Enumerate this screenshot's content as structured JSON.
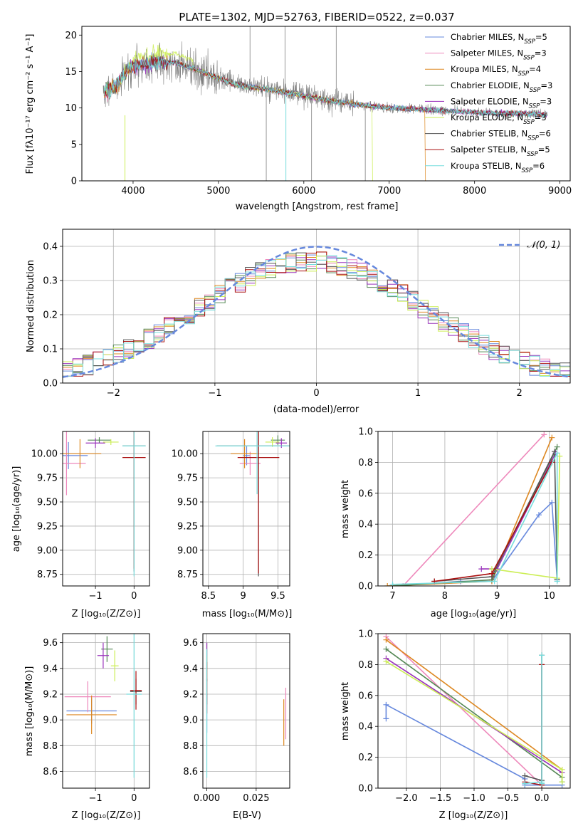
{
  "chart_data": [
    {
      "id": "spectrum",
      "type": "line",
      "title": "PLATE=1302, MJD=52763, FIBERID=0522, z=0.037",
      "xlabel": "wavelength [Angstrom, rest frame]",
      "ylabel": "Flux [fλ10⁻¹⁷ erg cm⁻² s⁻¹ A⁻¹]",
      "xlim": [
        3400,
        9120
      ],
      "ylim": [
        0,
        21.2
      ],
      "xticks": [
        4000,
        5000,
        6000,
        7000,
        8000,
        9000
      ],
      "yticks": [
        0,
        5,
        10,
        15,
        20
      ],
      "grid": false,
      "legend_position": "top-right",
      "legend": [
        {
          "text": "Chabrier MILES, N",
          "sub": "SSP",
          "suffix": "=5",
          "color": "#6688dd"
        },
        {
          "text": "Salpeter MILES, N",
          "sub": "SSP",
          "suffix": "=3",
          "color": "#ee88bb"
        },
        {
          "text": "Kroupa MILES, N",
          "sub": "SSP",
          "suffix": "=4",
          "color": "#dd8822"
        },
        {
          "text": "Chabrier ELODIE, N",
          "sub": "SSP",
          "suffix": "=3",
          "color": "#558855"
        },
        {
          "text": "Salpeter ELODIE, N",
          "sub": "SSP",
          "suffix": "=3",
          "color": "#9933bb"
        },
        {
          "text": "Kroupa ELODIE, N",
          "sub": "SSP",
          "suffix": "=3",
          "color": "#ccee55"
        },
        {
          "text": "Chabrier STELIB, N",
          "sub": "SSP",
          "suffix": "=6",
          "color": "#555555"
        },
        {
          "text": "Salpeter STELIB, N",
          "sub": "SSP",
          "suffix": "=5",
          "color": "#aa1111"
        },
        {
          "text": "Kroupa STELIB, N",
          "sub": "SSP",
          "suffix": "=6",
          "color": "#77dddd"
        }
      ],
      "continuum": [
        [
          3650,
          12.0
        ],
        [
          3800,
          13.0
        ],
        [
          3950,
          15.5
        ],
        [
          4100,
          16.0
        ],
        [
          4300,
          16.3
        ],
        [
          4500,
          16.2
        ],
        [
          4800,
          15.0
        ],
        [
          5200,
          13.2
        ],
        [
          5600,
          12.5
        ],
        [
          6000,
          11.7
        ],
        [
          6300,
          11.0
        ],
        [
          6600,
          10.5
        ],
        [
          7000,
          10.0
        ],
        [
          7400,
          9.8
        ],
        [
          7800,
          9.5
        ],
        [
          8200,
          9.3
        ],
        [
          8600,
          9.2
        ],
        [
          8850,
          9.1
        ]
      ]
    },
    {
      "id": "residuals",
      "type": "area",
      "xlabel": "(data-model)/error",
      "ylabel": "Normed distribution",
      "xlim": [
        -2.5,
        2.5
      ],
      "ylim": [
        0,
        0.45
      ],
      "xticks": [
        -2,
        -1,
        0,
        1,
        2
      ],
      "yticks": [
        0.0,
        0.1,
        0.2,
        0.3,
        0.4
      ],
      "grid": true,
      "legend_position": "top-right",
      "legend": [
        {
          "text": "𝒩(0, 1)",
          "color": "#6688dd"
        }
      ],
      "gaussian": {
        "mu": 0,
        "sigma": 1
      }
    },
    {
      "id": "age-vs-Z",
      "type": "scatter",
      "xlabel": "Z [log₁₀(Z/Z⊙)]",
      "ylabel": "age  [log₁₀(age/yr)]",
      "xlim": [
        -1.85,
        0.4
      ],
      "ylim": [
        8.63,
        10.23
      ],
      "xticks": [
        -1,
        0
      ],
      "yticks": [
        8.75,
        9.0,
        9.25,
        9.5,
        9.75,
        10.0
      ],
      "grid": true,
      "points": [
        {
          "x": -1.7,
          "y": 9.98,
          "xerr": 0.5,
          "yerr": 0.14,
          "color": "#6688dd"
        },
        {
          "x": -1.75,
          "y": 9.9,
          "xerr": 0.5,
          "yerr": 0.33,
          "color": "#ee88bb"
        },
        {
          "x": -1.4,
          "y": 10.0,
          "xerr": 0.55,
          "yerr": 0.15,
          "color": "#dd8822"
        },
        {
          "x": -0.9,
          "y": 10.14,
          "xerr": 0.3,
          "yerr": 0.03,
          "color": "#558855"
        },
        {
          "x": -1.0,
          "y": 10.11,
          "xerr": 0.25,
          "yerr": 0.05,
          "color": "#9933bb"
        },
        {
          "x": -0.6,
          "y": 10.12,
          "xerr": 0.2,
          "yerr": 0.03,
          "color": "#ccee55"
        },
        {
          "x": 0.0,
          "y": 10.08,
          "xerr": 0.3,
          "yerr": 1.3,
          "color": "#555555"
        },
        {
          "x": 0.0,
          "y": 9.96,
          "xerr": 0.3,
          "yerr": 1.15,
          "color": "#aa1111"
        },
        {
          "x": 0.0,
          "y": 10.08,
          "xerr": 0.3,
          "yerr": 1.35,
          "color": "#77dddd"
        }
      ]
    },
    {
      "id": "age-vs-mass",
      "type": "scatter",
      "xlabel": "mass [log₁₀(M/M⊙)]",
      "ylabel": "",
      "xlim": [
        8.42,
        9.67
      ],
      "ylim": [
        8.63,
        10.23
      ],
      "xticks": [
        8.5,
        9.0,
        9.5
      ],
      "yticks": [
        8.75,
        9.0,
        9.25,
        9.5,
        9.75,
        10.0
      ],
      "grid": true,
      "points": [
        {
          "x": 9.05,
          "y": 9.98,
          "xerr": 0.05,
          "yerr": 0.1,
          "color": "#6688dd"
        },
        {
          "x": 9.1,
          "y": 9.9,
          "xerr": 0.15,
          "yerr": 0.12,
          "color": "#ee88bb"
        },
        {
          "x": 9.02,
          "y": 10.0,
          "xerr": 0.2,
          "yerr": 0.15,
          "color": "#dd8822"
        },
        {
          "x": 9.5,
          "y": 10.14,
          "xerr": 0.1,
          "yerr": 0.05,
          "color": "#558855"
        },
        {
          "x": 9.55,
          "y": 10.11,
          "xerr": 0.08,
          "yerr": 0.05,
          "color": "#9933bb"
        },
        {
          "x": 9.42,
          "y": 10.12,
          "xerr": 0.1,
          "yerr": 0.05,
          "color": "#ccee55"
        },
        {
          "x": 9.22,
          "y": 10.08,
          "xerr": 0.6,
          "yerr": 1.35,
          "color": "#555555"
        },
        {
          "x": 9.22,
          "y": 9.96,
          "xerr": 0.3,
          "yerr": 1.2,
          "color": "#aa1111"
        },
        {
          "x": 9.2,
          "y": 10.08,
          "xerr": 0.6,
          "yerr": 0.5,
          "color": "#77dddd"
        }
      ]
    },
    {
      "id": "massweight-vs-age",
      "type": "line",
      "xlabel": "age  [log₁₀(age/yr)]",
      "ylabel": "mass weight",
      "xlim": [
        6.72,
        10.4
      ],
      "ylim": [
        0,
        1
      ],
      "xticks": [
        7,
        8,
        9,
        10
      ],
      "yticks": [
        0.0,
        0.2,
        0.4,
        0.6,
        0.8,
        1.0
      ],
      "grid": true,
      "series": [
        {
          "color": "#6688dd",
          "x": [
            7.0,
            8.3,
            8.9,
            9.8,
            10.05,
            10.15,
            10.15
          ],
          "y": [
            0.0,
            0.03,
            0.03,
            0.46,
            0.54,
            0.04,
            0.04
          ]
        },
        {
          "color": "#ee88bb",
          "x": [
            7.2,
            9.9
          ],
          "y": [
            0.0,
            0.98
          ]
        },
        {
          "color": "#dd8822",
          "x": [
            6.9,
            8.9,
            10.05
          ],
          "y": [
            0.0,
            0.03,
            0.96
          ]
        },
        {
          "color": "#558855",
          "x": [
            7.0,
            8.9,
            10.15
          ],
          "y": [
            0.0,
            0.04,
            0.9
          ]
        },
        {
          "color": "#9933bb",
          "x": [
            8.7,
            9.0,
            10.12
          ],
          "y": [
            0.11,
            0.11,
            0.86
          ]
        },
        {
          "color": "#ccee55",
          "x": [
            8.9,
            10.15,
            10.2
          ],
          "y": [
            0.11,
            0.05,
            0.84
          ]
        },
        {
          "color": "#555555",
          "x": [
            7.8,
            8.9,
            10.1,
            10.15
          ],
          "y": [
            0.03,
            0.06,
            0.87,
            0.04
          ]
        },
        {
          "color": "#aa1111",
          "x": [
            7.8,
            8.9,
            10.05
          ],
          "y": [
            0.03,
            0.08,
            0.8
          ]
        },
        {
          "color": "#77dddd",
          "x": [
            7.0,
            8.95,
            10.15,
            10.15
          ],
          "y": [
            0.01,
            0.03,
            0.86,
            0.03
          ]
        }
      ]
    },
    {
      "id": "mass-vs-Z",
      "type": "scatter",
      "xlabel": "Z [log₁₀(Z/Z⊙)]",
      "ylabel": "mass [log₁₀(M/M⊙)]",
      "xlim": [
        -1.85,
        0.4
      ],
      "ylim": [
        8.47,
        9.67
      ],
      "xticks": [
        -1,
        0
      ],
      "yticks": [
        8.6,
        8.8,
        9.0,
        9.2,
        9.4,
        9.6
      ],
      "grid": true,
      "points": [
        {
          "x": -1.1,
          "y": 9.07,
          "xerr": 0.65,
          "yerr": 0.1,
          "color": "#6688dd"
        },
        {
          "x": -1.2,
          "y": 9.18,
          "xerr": 0.6,
          "yerr": 0.12,
          "color": "#ee88bb"
        },
        {
          "x": -1.1,
          "y": 9.04,
          "xerr": 0.65,
          "yerr": 0.15,
          "color": "#dd8822"
        },
        {
          "x": -0.7,
          "y": 9.55,
          "xerr": 0.15,
          "yerr": 0.1,
          "color": "#558855"
        },
        {
          "x": -0.8,
          "y": 9.5,
          "xerr": 0.15,
          "yerr": 0.1,
          "color": "#9933bb"
        },
        {
          "x": -0.5,
          "y": 9.42,
          "xerr": 0.1,
          "yerr": 0.12,
          "color": "#ccee55"
        },
        {
          "x": 0.05,
          "y": 9.22,
          "xerr": 0.15,
          "yerr": 0.1,
          "color": "#555555"
        },
        {
          "x": 0.05,
          "y": 9.23,
          "xerr": 0.15,
          "yerr": 0.15,
          "color": "#aa1111"
        },
        {
          "x": 0.0,
          "y": 9.2,
          "xerr": 0.2,
          "yerr": 0.65,
          "color": "#77dddd"
        }
      ]
    },
    {
      "id": "mass-vs-EBV",
      "type": "scatter",
      "xlabel": "E(B-V)",
      "ylabel": "",
      "xlim": [
        -0.002,
        0.042
      ],
      "ylim": [
        8.47,
        9.67
      ],
      "xticks": [
        0.0,
        0.025
      ],
      "yticks": [
        8.6,
        8.8,
        9.0,
        9.2,
        9.4,
        9.6
      ],
      "grid": true,
      "points": [
        {
          "x": 0.0,
          "y": 9.05,
          "xerr": 0,
          "yerr": 0.15,
          "color": "#6688dd"
        },
        {
          "x": 0.04,
          "y": 9.05,
          "xerr": 0,
          "yerr": 0.2,
          "color": "#ee88bb"
        },
        {
          "x": 0.039,
          "y": 8.98,
          "xerr": 0,
          "yerr": 0.18,
          "color": "#dd8822"
        },
        {
          "x": 0.0,
          "y": 9.5,
          "xerr": 0,
          "yerr": 0.1,
          "color": "#558855"
        },
        {
          "x": 0.0,
          "y": 9.45,
          "xerr": 0,
          "yerr": 0.15,
          "color": "#9933bb"
        },
        {
          "x": 0.0,
          "y": 9.4,
          "xerr": 0,
          "yerr": 0.1,
          "color": "#ccee55"
        },
        {
          "x": 0.0,
          "y": 9.22,
          "xerr": 0,
          "yerr": 0.1,
          "color": "#555555"
        },
        {
          "x": 0.0,
          "y": 9.25,
          "xerr": 0,
          "yerr": 0.2,
          "color": "#aa1111"
        },
        {
          "x": 0.0,
          "y": 9.05,
          "xerr": 0,
          "yerr": 0.5,
          "color": "#77dddd"
        }
      ]
    },
    {
      "id": "massweight-vs-Z",
      "type": "line",
      "xlabel": "Z [log₁₀(Z/Z⊙)]",
      "ylabel": "mass weight",
      "xlim": [
        -2.42,
        0.42
      ],
      "ylim": [
        0,
        1
      ],
      "xticks": [
        -2.0,
        -1.5,
        -1.0,
        -0.5,
        0.0
      ],
      "yticks": [
        0.0,
        0.2,
        0.4,
        0.6,
        0.8,
        1.0
      ],
      "grid": true,
      "series": [
        {
          "color": "#6688dd",
          "x": [
            -2.3,
            -2.3,
            -0.25,
            -0.25,
            0.3
          ],
          "y": [
            0.45,
            0.54,
            0.06,
            0.02,
            0.02
          ]
        },
        {
          "color": "#ee88bb",
          "x": [
            -2.3,
            0.0,
            0.0
          ],
          "y": [
            0.98,
            0.02,
            0.02
          ]
        },
        {
          "color": "#dd8822",
          "x": [
            -2.3,
            0.3
          ],
          "y": [
            0.96,
            0.12
          ]
        },
        {
          "color": "#558855",
          "x": [
            -2.3,
            0.3,
            0.3
          ],
          "y": [
            0.9,
            0.07,
            0.04
          ]
        },
        {
          "color": "#9933bb",
          "x": [
            -2.3,
            0.3
          ],
          "y": [
            0.84,
            0.1
          ]
        },
        {
          "color": "#ccee55",
          "x": [
            -2.3,
            0.3,
            0.3
          ],
          "y": [
            0.82,
            0.12,
            0.04
          ]
        },
        {
          "color": "#555555",
          "x": [
            -0.25,
            0.0,
            0.0,
            0.0
          ],
          "y": [
            0.08,
            0.05,
            0.86,
            0.02
          ]
        },
        {
          "color": "#aa1111",
          "x": [
            -0.25,
            0.0,
            0.0
          ],
          "y": [
            0.04,
            0.02,
            0.8
          ]
        },
        {
          "color": "#77dddd",
          "x": [
            -0.25,
            0.0,
            0.0,
            0.0
          ],
          "y": [
            0.03,
            0.04,
            0.86,
            0.03
          ]
        }
      ]
    }
  ]
}
